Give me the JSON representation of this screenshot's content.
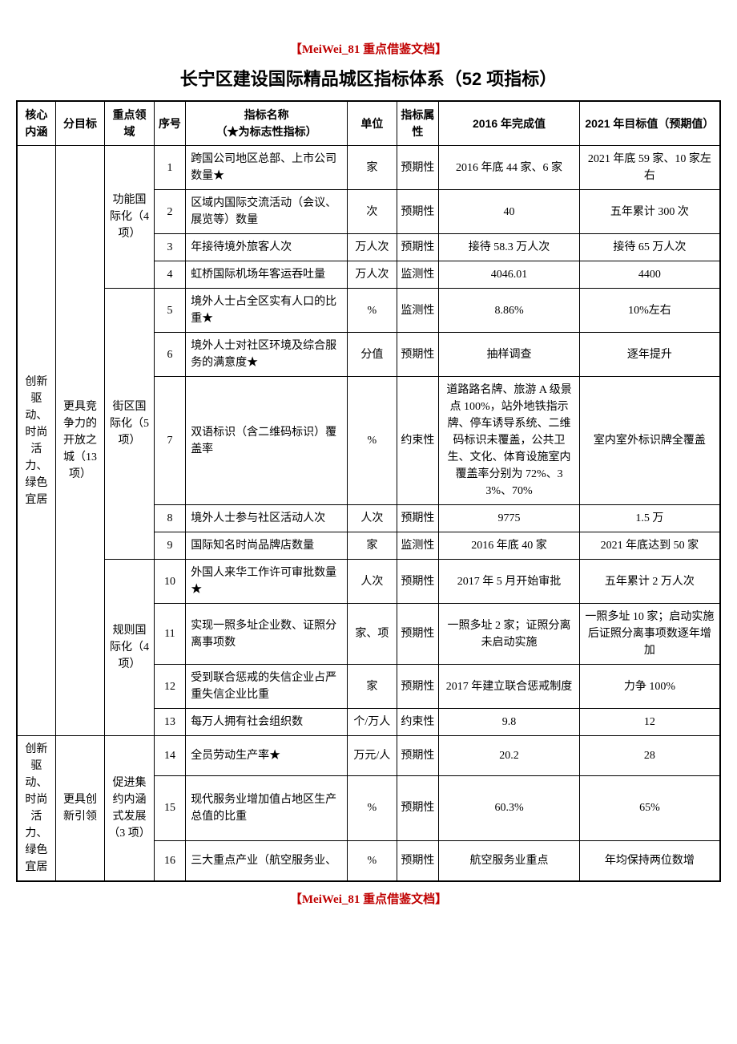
{
  "header_tag": "【MeiWei_81 重点借鉴文档】",
  "footer_tag": "【MeiWei_81 重点借鉴文档】",
  "title": "长宁区建设国际精品城区指标体系（52 项指标）",
  "columns": {
    "core": "核心内涵",
    "sub": "分目标",
    "area": "重点领域",
    "num": "序号",
    "name": "指标名称",
    "name_sub": "（★为标志性指标）",
    "unit": "单位",
    "attr": "指标属性",
    "y2016": "2016 年完成值",
    "y2021": "2021 年目标值（预期值）"
  },
  "core1": "创新驱动、时尚活力、绿色宜居",
  "core2": "创新驱动、时尚活力、绿色宜居",
  "sub1": "更具竞争力的开放之城（13 项）",
  "sub2": "更具创新引领",
  "area1": "功能国际化（4 项）",
  "area2": "街区国际化（5 项）",
  "area3": "规则国际化（4 项）",
  "area4": "促进集约内涵式发展（3 项）",
  "rows": [
    {
      "n": "1",
      "name": "跨国公司地区总部、上市公司数量★",
      "unit": "家",
      "attr": "预期性",
      "y2016": "2016 年底 44 家、6 家",
      "y2021": "2021 年底 59 家、10 家左右"
    },
    {
      "n": "2",
      "name": "区域内国际交流活动（会议、展览等）数量",
      "unit": "次",
      "attr": "预期性",
      "y2016": "40",
      "y2021": "五年累计 300 次"
    },
    {
      "n": "3",
      "name": "年接待境外旅客人次",
      "unit": "万人次",
      "attr": "预期性",
      "y2016": "接待 58.3 万人次",
      "y2021": "接待 65 万人次"
    },
    {
      "n": "4",
      "name": "虹桥国际机场年客运吞吐量",
      "unit": "万人次",
      "attr": "监测性",
      "y2016": "4046.01",
      "y2021": "4400"
    },
    {
      "n": "5",
      "name": "境外人士占全区实有人口的比重★",
      "unit": "%",
      "attr": "监测性",
      "y2016": "8.86%",
      "y2021": "10%左右"
    },
    {
      "n": "6",
      "name": "境外人士对社区环境及综合服务的满意度★",
      "unit": "分值",
      "attr": "预期性",
      "y2016": "抽样调查",
      "y2021": "逐年提升"
    },
    {
      "n": "7",
      "name": "双语标识（含二维码标识）覆盖率",
      "unit": "%",
      "attr": "约束性",
      "y2016": "道路路名牌、旅游 A 级景点 100%，站外地铁指示牌、停车诱导系统、二维码标识未覆盖，公共卫生、文化、体育设施室内覆盖率分别为 72%、33%、70%",
      "y2021": "室内室外标识牌全覆盖"
    },
    {
      "n": "8",
      "name": "境外人士参与社区活动人次",
      "unit": "人次",
      "attr": "预期性",
      "y2016": "9775",
      "y2021": "1.5 万"
    },
    {
      "n": "9",
      "name": "国际知名时尚品牌店数量",
      "unit": "家",
      "attr": "监测性",
      "y2016": "2016 年底 40 家",
      "y2021": "2021 年底达到 50 家"
    },
    {
      "n": "10",
      "name": "外国人来华工作许可审批数量★",
      "unit": "人次",
      "attr": "预期性",
      "y2016": "2017 年 5 月开始审批",
      "y2021": "五年累计 2 万人次"
    },
    {
      "n": "11",
      "name": "实现一照多址企业数、证照分离事项数",
      "unit": "家、项",
      "attr": "预期性",
      "y2016": "一照多址 2 家；证照分离未启动实施",
      "y2021": "一照多址 10 家；启动实施后证照分离事项数逐年增加"
    },
    {
      "n": "12",
      "name": "受到联合惩戒的失信企业占严重失信企业比重",
      "unit": "家",
      "attr": "预期性",
      "y2016": "2017 年建立联合惩戒制度",
      "y2021": "力争 100%"
    },
    {
      "n": "13",
      "name": "每万人拥有社会组织数",
      "unit": "个/万人",
      "attr": "约束性",
      "y2016": "9.8",
      "y2021": "12"
    },
    {
      "n": "14",
      "name": "全员劳动生产率★",
      "unit": "万元/人",
      "attr": "预期性",
      "y2016": "20.2",
      "y2021": "28"
    },
    {
      "n": "15",
      "name": "现代服务业增加值占地区生产总值的比重",
      "unit": "%",
      "attr": "预期性",
      "y2016": "60.3%",
      "y2021": "65%"
    },
    {
      "n": "16",
      "name": "三大重点产业（航空服务业、",
      "unit": "%",
      "attr": "预期性",
      "y2016": "航空服务业重点",
      "y2021": "年均保持两位数增"
    }
  ]
}
